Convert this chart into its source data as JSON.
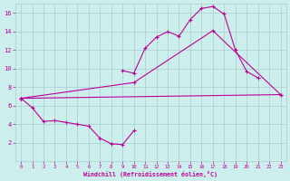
{
  "xlabel": "Windchill (Refroidissement éolien,°C)",
  "bg_color": "#cceeed",
  "grid_color": "#aacccc",
  "line_color": "#bb0099",
  "xlim": [
    -0.5,
    23.5
  ],
  "ylim": [
    0,
    17
  ],
  "xticks": [
    0,
    1,
    2,
    3,
    4,
    5,
    6,
    7,
    8,
    9,
    10,
    11,
    12,
    13,
    14,
    15,
    16,
    17,
    18,
    19,
    20,
    21,
    22,
    23
  ],
  "yticks": [
    2,
    4,
    6,
    8,
    10,
    12,
    14,
    16
  ],
  "s1x": [
    0,
    1,
    2,
    3,
    4,
    5,
    6,
    7,
    8,
    9,
    10
  ],
  "s1y": [
    6.8,
    5.8,
    4.3,
    4.4,
    4.2,
    4.0,
    3.8,
    2.5,
    1.9,
    1.8,
    3.3
  ],
  "s2x": [
    9,
    10,
    11,
    12,
    13,
    14,
    15,
    16,
    17,
    18,
    19,
    20,
    21
  ],
  "s2y": [
    9.8,
    9.5,
    12.2,
    13.4,
    14.0,
    13.5,
    15.3,
    16.5,
    16.7,
    15.9,
    12.0,
    9.7,
    9.0
  ],
  "s3x": [
    0,
    23
  ],
  "s3y": [
    6.8,
    7.2
  ],
  "s4x": [
    0,
    10,
    17,
    23
  ],
  "s4y": [
    6.8,
    8.5,
    14.1,
    7.2
  ]
}
